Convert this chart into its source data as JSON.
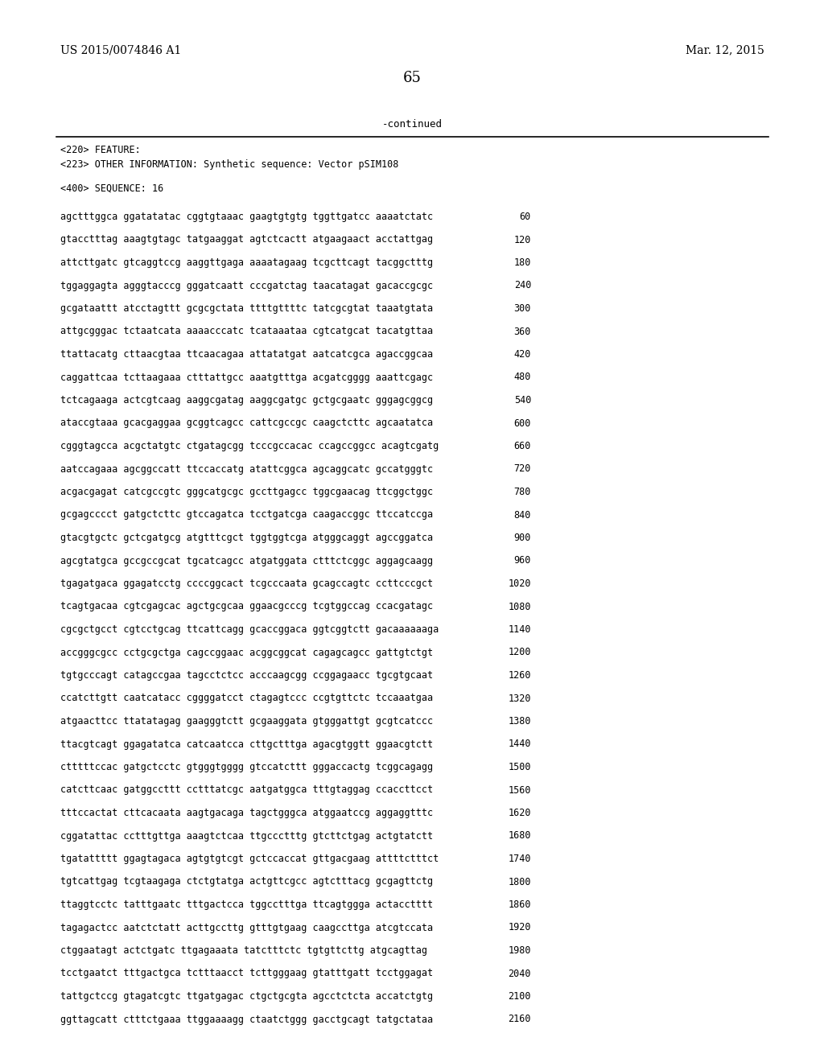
{
  "header_left": "US 2015/0074846 A1",
  "header_right": "Mar. 12, 2015",
  "page_number": "65",
  "continued_text": "-continued",
  "feature_line1": "<220> FEATURE:",
  "feature_line2": "<223> OTHER INFORMATION: Synthetic sequence: Vector pSIM108",
  "sequence_header": "<400> SEQUENCE: 16",
  "sequence_lines": [
    [
      "agctttggca ggatatatac cggtgtaaac gaagtgtgtg tggttgatcc aaaatctatc",
      "60"
    ],
    [
      "gtacctttag aaagtgtagc tatgaaggat agtctcactt atgaagaact acctattgag",
      "120"
    ],
    [
      "attcttgatc gtcaggtccg aaggttgaga aaaatagaag tcgcttcagt tacggctttg",
      "180"
    ],
    [
      "tggaggagta agggtacccg gggatcaatt cccgatctag taacatagat gacaccgcgc",
      "240"
    ],
    [
      "gcgataattt atcctagttt gcgcgctata ttttgttttc tatcgcgtat taaatgtata",
      "300"
    ],
    [
      "attgcgggac tctaatcata aaaacccatc tcataaataa cgtcatgcat tacatgttaa",
      "360"
    ],
    [
      "ttattacatg cttaacgtaa ttcaacagaa attatatgat aatcatcgca agaccggcaa",
      "420"
    ],
    [
      "caggattcaa tcttaagaaa ctttattgcc aaatgtttga acgatcgggg aaattcgagc",
      "480"
    ],
    [
      "tctcagaaga actcgtcaag aaggcgatag aaggcgatgc gctgcgaatc gggagcggcg",
      "540"
    ],
    [
      "ataccgtaaa gcacgaggaa gcggtcagcc cattcgccgc caagctcttc agcaatatca",
      "600"
    ],
    [
      "cgggtagcca acgctatgtc ctgatagcgg tcccgccacac ccagccggcc acagtcgatg",
      "660"
    ],
    [
      "aatccagaaa agcggccatt ttccaccatg atattcggca agcaggcatc gccatgggtc",
      "720"
    ],
    [
      "acgacgagat catcgccgtc gggcatgcgc gccttgagcc tggcgaacag ttcggctggc",
      "780"
    ],
    [
      "gcgagcccct gatgctcttc gtccagatca tcctgatcga caagaccggc ttccatccga",
      "840"
    ],
    [
      "gtacgtgctc gctcgatgcg atgtttcgct tggtggtcga atgggcaggt agccggatca",
      "900"
    ],
    [
      "agcgtatgca gccgccgcat tgcatcagcc atgatggata ctttctcggc aggagcaagg",
      "960"
    ],
    [
      "tgagatgaca ggagatcctg ccccggcact tcgcccaata gcagccagtc ccttcccgct",
      "1020"
    ],
    [
      "tcagtgacaa cgtcgagcac agctgcgcaa ggaacgcccg tcgtggccag ccacgatagc",
      "1080"
    ],
    [
      "cgcgctgcct cgtcctgcag ttcattcagg gcaccggaca ggtcggtctt gacaaaaaaga",
      "1140"
    ],
    [
      "accgggcgcc cctgcgctga cagccggaac acggcggcat cagagcagcc gattgtctgt",
      "1200"
    ],
    [
      "tgtgcccagt catagccgaa tagcctctcc acccaagcgg ccggagaacc tgcgtgcaat",
      "1260"
    ],
    [
      "ccatcttgtt caatcatacc cggggatcct ctagagtccc ccgtgttctc tccaaatgaa",
      "1320"
    ],
    [
      "atgaacttcc ttatatagag gaagggtctt gcgaaggata gtgggattgt gcgtcatccc",
      "1380"
    ],
    [
      "ttacgtcagt ggagatatca catcaatcca cttgctttga agacgtggtt ggaacgtctt",
      "1440"
    ],
    [
      "ctttttccac gatgctcctc gtgggtgggg gtccatcttt gggaccactg tcggcagagg",
      "1500"
    ],
    [
      "catcttcaac gatggccttt cctttatcgc aatgatggca tttgtaggag ccaccttcct",
      "1560"
    ],
    [
      "tttccactat cttcacaata aagtgacaga tagctgggca atggaatccg aggaggtttc",
      "1620"
    ],
    [
      "cggatattac cctttgttga aaagtctcaa ttgccctttg gtcttctgag actgtatctt",
      "1680"
    ],
    [
      "tgatattttt ggagtagaca agtgtgtcgt gctccaccat gttgacgaag attttctttct",
      "1740"
    ],
    [
      "tgtcattgag tcgtaagaga ctctgtatga actgttcgcc agtctttacg gcgagttctg",
      "1800"
    ],
    [
      "ttaggtcctc tatttgaatc tttgactcca tggcctttga ttcagtggga actacctttt",
      "1860"
    ],
    [
      "tagagactcc aatctctatt acttgccttg gtttgtgaag caagccttga atcgtccata",
      "1920"
    ],
    [
      "ctggaatagt actctgatc ttgagaaata tatctttctc tgtgttcttg atgcagttag",
      "1980"
    ],
    [
      "tcctgaatct tttgactgca tctttaacct tcttgggaag gtatttgatt tcctggagat",
      "2040"
    ],
    [
      "tattgctccg gtagatcgtc ttgatgagac ctgctgcgta agcctctcta accatctgtg",
      "2100"
    ],
    [
      "ggttagcatt ctttctgaaa ttggaaaagg ctaatctggg gacctgcagt tatgctataa",
      "2160"
    ]
  ],
  "bg_color": "#ffffff",
  "text_color": "#000000"
}
